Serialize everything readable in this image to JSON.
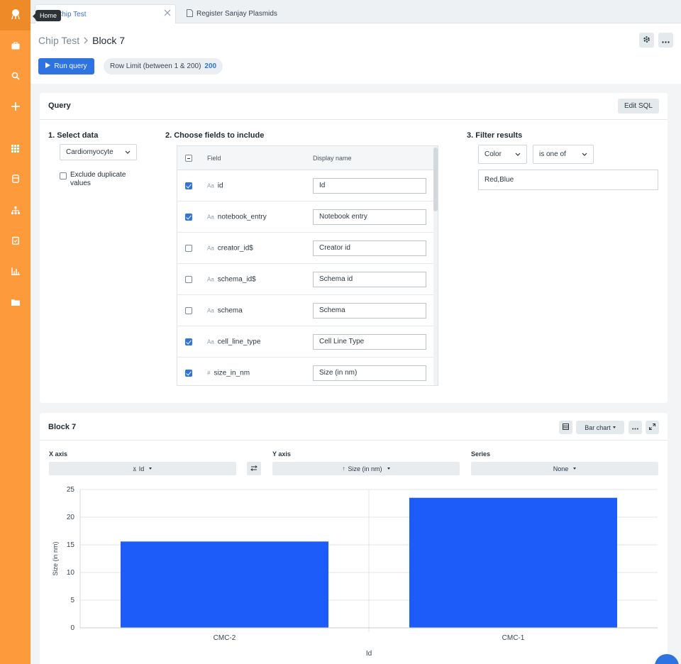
{
  "sidebar": {
    "tooltip": "Home",
    "icons": [
      "home-icon",
      "briefcase-icon",
      "search-icon",
      "plus-icon",
      "apps-grid-icon",
      "database-icon",
      "hierarchy-icon",
      "checklist-icon",
      "analytics-icon",
      "folder-icon"
    ]
  },
  "tabs": [
    {
      "label": "Chip Test",
      "active": true
    },
    {
      "label": "Register Sanjay Plasmids",
      "active": false
    }
  ],
  "breadcrumb": {
    "parent": "Chip Test",
    "current": "Block 7"
  },
  "toolbar": {
    "run_label": "Run query",
    "row_limit_label": "Row Limit (between 1 & 200)",
    "row_limit_value": "200"
  },
  "query": {
    "title": "Query",
    "edit_sql": "Edit SQL",
    "step1_title": "1. Select data",
    "dataset": "Cardiomyocyte",
    "exclude_dup_line1": "Exclude duplicate",
    "exclude_dup_line2": "values",
    "step2_title": "2. Choose fields to include",
    "table_head_field": "Field",
    "table_head_display": "Display name",
    "fields": [
      {
        "field": "id",
        "display": "Id",
        "checked": true,
        "type": "text"
      },
      {
        "field": "notebook_entry",
        "display": "Notebook entry",
        "checked": true,
        "type": "text"
      },
      {
        "field": "creator_id$",
        "display": "Creator id",
        "checked": false,
        "type": "text"
      },
      {
        "field": "schema_id$",
        "display": "Schema id",
        "checked": false,
        "type": "text"
      },
      {
        "field": "schema",
        "display": "Schema",
        "checked": false,
        "type": "text"
      },
      {
        "field": "cell_line_type",
        "display": "Cell Line Type",
        "checked": true,
        "type": "text"
      },
      {
        "field": "size_in_nm",
        "display": "Size (in nm)",
        "checked": true,
        "type": "number"
      }
    ],
    "type_glyph_text": "Aa",
    "type_glyph_number": "#",
    "step3_title": "3. Filter results",
    "filter_field": "Color",
    "filter_op": "is one of",
    "filter_value": "Red,Blue"
  },
  "block": {
    "title": "Block 7",
    "chart_type_label": "Bar chart",
    "x_axis_label": "X axis",
    "x_axis_value": "Id",
    "y_axis_label": "Y axis",
    "y_axis_value": "Size (in nm)",
    "series_label": "Series",
    "series_value": "None"
  },
  "colors": {
    "accent": "#2d74e0",
    "sidebar": "#fc9a3c",
    "bar": "#1e5cf9"
  },
  "chart_data": {
    "type": "bar",
    "categories": [
      "CMC-2",
      "CMC-1"
    ],
    "values": [
      15.6,
      23.5
    ],
    "xlabel": "Id",
    "ylabel": "Size (in nm)",
    "ylim": [
      0,
      25
    ],
    "yticks": [
      0,
      5,
      10,
      15,
      20,
      25
    ],
    "grid": true
  }
}
